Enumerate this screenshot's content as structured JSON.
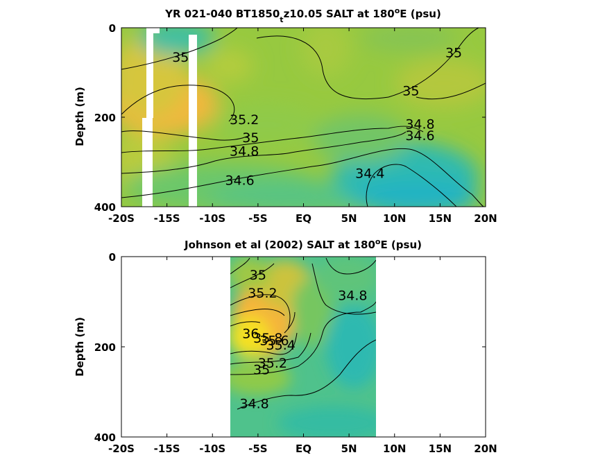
{
  "chart_data": [
    {
      "type": "contour",
      "title_main": "YR 021-040 BT1850",
      "title_sub": "t",
      "title_rest": "z10.05 SALT at 180",
      "title_sup": "o",
      "title_end": "E (psu)",
      "ylabel": "Depth (m)",
      "ylim": [
        0,
        400
      ],
      "xlim": [
        -20,
        20
      ],
      "x_ticks": [
        -20,
        -15,
        -10,
        -5,
        0,
        5,
        10,
        15,
        20
      ],
      "x_tick_labels": [
        "-20S",
        "-15S",
        "-10S",
        "-5S",
        "EQ",
        "5N",
        "10N",
        "15N",
        "20N"
      ],
      "y_ticks": [
        0,
        200,
        400
      ],
      "y_tick_labels": [
        "0",
        "200",
        "400"
      ],
      "contour_labels": [
        {
          "text": "35",
          "lat": -13.5,
          "depth": 65
        },
        {
          "text": "35",
          "lat": 16.5,
          "depth": 55
        },
        {
          "text": "35",
          "lat": 11.8,
          "depth": 140
        },
        {
          "text": "35.2",
          "lat": -6.5,
          "depth": 205
        },
        {
          "text": "35",
          "lat": -5.8,
          "depth": 245
        },
        {
          "text": "34.8",
          "lat": -6.5,
          "depth": 275
        },
        {
          "text": "34.6",
          "lat": -7.0,
          "depth": 340
        },
        {
          "text": "34.8",
          "lat": 12.8,
          "depth": 215
        },
        {
          "text": "34.6",
          "lat": 12.8,
          "depth": 240
        },
        {
          "text": "34.4",
          "lat": 7.3,
          "depth": 325
        }
      ]
    },
    {
      "type": "contour",
      "title_main": "Johnson et al (2002) SALT at 180",
      "title_sup": "o",
      "title_end": "E (psu)",
      "ylabel": "Depth (m)",
      "ylim": [
        0,
        400
      ],
      "xlim": [
        -20,
        20
      ],
      "data_extent_lat": [
        -8,
        8
      ],
      "x_ticks": [
        -20,
        -15,
        -10,
        -5,
        0,
        5,
        10,
        15,
        20
      ],
      "x_tick_labels": [
        "-20S",
        "-15S",
        "-10S",
        "-5S",
        "EQ",
        "5N",
        "10N",
        "15N",
        "20N"
      ],
      "y_ticks": [
        0,
        200,
        400
      ],
      "y_tick_labels": [
        "0",
        "200",
        "400"
      ],
      "contour_labels": [
        {
          "text": "35",
          "lat": -5.0,
          "depth": 40
        },
        {
          "text": "35.2",
          "lat": -4.5,
          "depth": 80
        },
        {
          "text": "34.8",
          "lat": 5.4,
          "depth": 85
        },
        {
          "text": "36",
          "lat": -5.8,
          "depth": 170
        },
        {
          "text": "35.8",
          "lat": -3.9,
          "depth": 180
        },
        {
          "text": "35.6",
          "lat": -3.2,
          "depth": 185
        },
        {
          "text": "35.4",
          "lat": -2.5,
          "depth": 195
        },
        {
          "text": "35.2",
          "lat": -3.4,
          "depth": 235
        },
        {
          "text": "35",
          "lat": -4.6,
          "depth": 250
        },
        {
          "text": "34.8",
          "lat": -5.4,
          "depth": 325
        }
      ]
    }
  ]
}
